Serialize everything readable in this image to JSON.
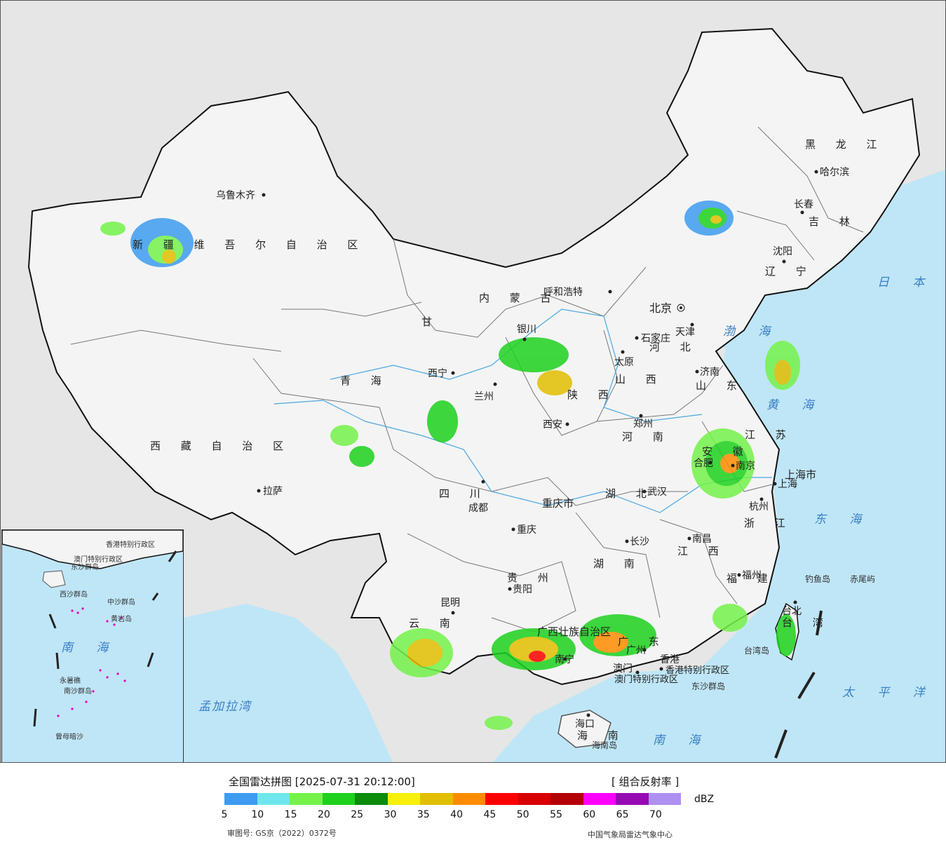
{
  "map": {
    "provinces": [
      {
        "name": "新 疆 维 吾 尔 自 治 区",
        "key": "xinjiang"
      },
      {
        "name": "西 藏 自 治 区",
        "key": "xizang"
      },
      {
        "name": "青 海",
        "key": "qinghai"
      },
      {
        "name": "甘",
        "key": "gansu"
      },
      {
        "name": "内 蒙 古",
        "key": "neimenggu"
      },
      {
        "name": "黑 龙 江",
        "key": "heilongjiang"
      },
      {
        "name": "吉 林",
        "key": "jilin"
      },
      {
        "name": "辽 宁",
        "key": "liaoning"
      },
      {
        "name": "河 北",
        "key": "hebei"
      },
      {
        "name": "山 西",
        "key": "shanxi"
      },
      {
        "name": "陕 西",
        "key": "shaanxi"
      },
      {
        "name": "山 东",
        "key": "shandong"
      },
      {
        "name": "河 南",
        "key": "henan"
      },
      {
        "name": "江 苏",
        "key": "jiangsu"
      },
      {
        "name": "安 徽",
        "key": "anhui"
      },
      {
        "name": "上海市",
        "key": "shanghai"
      },
      {
        "name": "浙 江",
        "key": "zhejiang"
      },
      {
        "name": "四 川",
        "key": "sichuan"
      },
      {
        "name": "重庆市",
        "key": "chongqing"
      },
      {
        "name": "湖 北",
        "key": "hubei"
      },
      {
        "name": "湖 南",
        "key": "hunan"
      },
      {
        "name": "江 西",
        "key": "jiangxi"
      },
      {
        "name": "福 建",
        "key": "fujian"
      },
      {
        "name": "贵 州",
        "key": "guizhou"
      },
      {
        "name": "云 南",
        "key": "yunnan"
      },
      {
        "name": "广西壮族自治区",
        "key": "guangxi"
      },
      {
        "name": "广 东",
        "key": "guangdong"
      },
      {
        "name": "海 南",
        "key": "hainan"
      },
      {
        "name": "台 湾",
        "key": "taiwan"
      },
      {
        "name": "香港特别行政区",
        "key": "hongkong"
      },
      {
        "name": "澳门特别行政区",
        "key": "macau"
      }
    ],
    "cities": [
      "乌鲁木齐",
      "拉萨",
      "西宁",
      "兰州",
      "银川",
      "呼和浩特",
      "北京",
      "天津",
      "石家庄",
      "太原",
      "济南",
      "郑州",
      "西安",
      "成都",
      "重庆",
      "武汉",
      "合肥",
      "南京",
      "上海",
      "杭州",
      "长沙",
      "南昌",
      "福州",
      "贵阳",
      "昆明",
      "南宁",
      "广州",
      "香港",
      "澳门",
      "海口",
      "台北",
      "沈阳",
      "长春",
      "哈尔滨"
    ],
    "seas": [
      "日 本 海",
      "渤 海",
      "黄 海",
      "东 海",
      "南 海",
      "太 平 洋",
      "孟加拉湾"
    ],
    "islands": [
      "钓鱼岛",
      "赤尾屿",
      "台湾岛",
      "东沙群岛",
      "海南岛"
    ],
    "inset": {
      "labels": [
        "南 海",
        "东沙群岛",
        "中沙群岛",
        "西沙群岛",
        "南沙群岛",
        "黄岩岛",
        "永暑礁",
        "曾母暗沙",
        "香港特别行政区",
        "澳门特别行政区"
      ]
    },
    "colors": {
      "land": "#f4f4f4",
      "sea": "#bfe6f7",
      "outside": "#e6e6e6",
      "border": "#111111"
    }
  },
  "legend": {
    "title": "全国雷达拼图 [2025-07-31 20:12:00]",
    "product": "[ 组合反射率 ]",
    "unit": "dBZ",
    "ticks": [
      "5",
      "10",
      "15",
      "20",
      "25",
      "30",
      "35",
      "40",
      "45",
      "50",
      "55",
      "60",
      "65",
      "70"
    ],
    "colors": [
      "#3d9cf0",
      "#6fe6ec",
      "#74f24a",
      "#1ed11e",
      "#0b8c0b",
      "#f7f00c",
      "#e2be00",
      "#ff8c00",
      "#ff0000",
      "#d80000",
      "#b40000",
      "#ff00ff",
      "#960ab4",
      "#ad90f0"
    ],
    "approval": "审图号: GS京（2022）0372号",
    "source": "中国气象局雷达气象中心"
  }
}
